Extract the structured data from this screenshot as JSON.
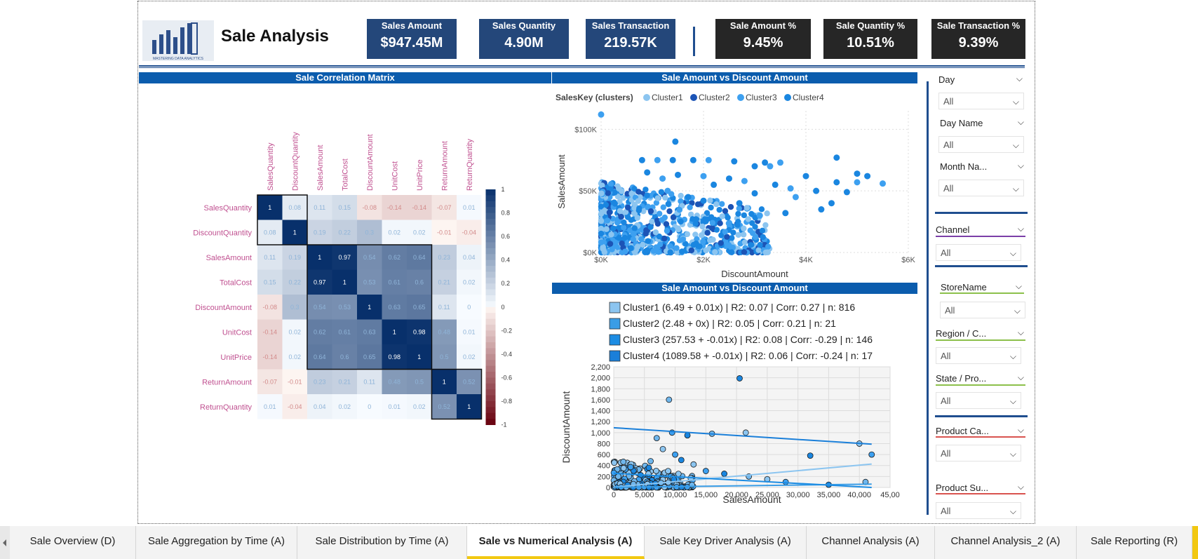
{
  "report": {
    "title": "Sale Analysis",
    "logo_text": "MASTERING DATA ANALYTICS"
  },
  "kpis": [
    {
      "label": "Sales Amount",
      "value": "$947.45M",
      "style": "blue"
    },
    {
      "label": "Sales Quantity",
      "value": "4.90M",
      "style": "blue"
    },
    {
      "label": "Sales Transaction",
      "value": "219.57K",
      "style": "blue"
    },
    {
      "label": "Sale Amount %",
      "value": "9.45%",
      "style": "dark"
    },
    {
      "label": "Sale Quantity %",
      "value": "10.51%",
      "style": "dark"
    },
    {
      "label": "Sale Transaction %",
      "value": "9.39%",
      "style": "dark"
    }
  ],
  "panels": {
    "corr_title": "Sale Correlation Matrix",
    "scatter_title": "Sale Amount vs Discount Amount",
    "regression_title": "Sale Amount vs Discount Amount"
  },
  "colors": {
    "header_blue": "#0b5cad",
    "kpi_blue": "#24477a",
    "kpi_dark": "#262626",
    "cluster1": "#8cc5f0",
    "cluster2": "#1c54b6",
    "cluster3": "#3da0f0",
    "cluster4": "#1a86e0",
    "active_tab": "#f2c811"
  },
  "slicers": [
    {
      "label": "Day",
      "value": "All"
    },
    {
      "label": "Day Name",
      "value": "All"
    },
    {
      "label": "Month Na...",
      "value": "All"
    },
    {
      "label": "Channel",
      "value": "All",
      "underline": "#7b3fa8"
    },
    {
      "label": "StoreName",
      "value": "All",
      "underline": "#8cc04b"
    },
    {
      "label": "Region / C...",
      "value": "All",
      "underline": "#8cc04b"
    },
    {
      "label": "State / Pro...",
      "value": "All",
      "underline": "#8cc04b"
    },
    {
      "label": "Product Ca...",
      "value": "All",
      "underline": "#d9534f"
    },
    {
      "label": "Product Su...",
      "value": "All",
      "underline": "#d9534f"
    }
  ],
  "tabs": [
    {
      "label": "Sale Overview (D)",
      "active": false
    },
    {
      "label": "Sale Aggregation by Time (A)",
      "active": false
    },
    {
      "label": "Sale Distribution by Time (A)",
      "active": false
    },
    {
      "label": "Sale vs Numerical Analysis (A)",
      "active": true
    },
    {
      "label": "Sale Key Driver Analysis (A)",
      "active": false
    },
    {
      "label": "Channel Analysis (A)",
      "active": false
    },
    {
      "label": "Channel Analysis_2 (A)",
      "active": false
    },
    {
      "label": "Sale Reporting (R)",
      "active": false
    }
  ],
  "chart_data": [
    {
      "type": "heatmap",
      "title": "Sale Correlation Matrix",
      "variables": [
        "SalesQuantity",
        "DiscountQuantity",
        "SalesAmount",
        "TotalCost",
        "DiscountAmount",
        "UnitCost",
        "UnitPrice",
        "ReturnAmount",
        "ReturnQuantity"
      ],
      "values": [
        [
          1,
          0.08,
          0.11,
          0.15,
          -0.08,
          -0.14,
          -0.14,
          -0.07,
          0.01
        ],
        [
          0.08,
          1,
          0.19,
          0.22,
          0.3,
          0.02,
          0.02,
          -0.01,
          -0.04
        ],
        [
          0.11,
          0.19,
          1,
          0.97,
          0.54,
          0.62,
          0.64,
          0.23,
          0.04
        ],
        [
          0.15,
          0.22,
          0.97,
          1,
          0.53,
          0.61,
          0.6,
          0.21,
          0.02
        ],
        [
          -0.08,
          0.3,
          0.54,
          0.53,
          1,
          0.63,
          0.65,
          0.11,
          0
        ],
        [
          -0.14,
          0.02,
          0.62,
          0.61,
          0.63,
          1,
          0.98,
          0.48,
          0.01
        ],
        [
          -0.14,
          0.02,
          0.64,
          0.6,
          0.65,
          0.98,
          1,
          0.5,
          0.02
        ],
        [
          -0.07,
          -0.01,
          0.23,
          0.21,
          0.11,
          0.48,
          0.5,
          1,
          0.52
        ],
        [
          0.01,
          -0.04,
          0.04,
          0.02,
          0,
          0.01,
          0.02,
          0.52,
          1
        ]
      ],
      "colorbar_ticks": [
        "1",
        "0.8",
        "0.6",
        "0.4",
        "0.2",
        "0",
        "-0.2",
        "-0.4",
        "-0.6",
        "-0.8",
        "-1"
      ],
      "colorbar_range": [
        -1,
        1
      ]
    },
    {
      "type": "scatter",
      "title": "Sale Amount vs Discount Amount",
      "legend_title": "SalesKey (clusters)",
      "legend_position": "top-left",
      "series": [
        {
          "name": "Cluster1",
          "color": "#8cc5f0"
        },
        {
          "name": "Cluster2",
          "color": "#1c54b6"
        },
        {
          "name": "Cluster3",
          "color": "#3da0f0"
        },
        {
          "name": "Cluster4",
          "color": "#1a86e0"
        }
      ],
      "xlabel": "DiscountAmount",
      "ylabel": "SalesAmount",
      "x_ticks": [
        "$0K",
        "$2K",
        "$4K",
        "$6K"
      ],
      "y_ticks": [
        "$0K",
        "$50K",
        "$100K"
      ],
      "xlim": [
        0,
        6000
      ],
      "ylim": [
        0,
        115000
      ],
      "grid": true,
      "outlier_points": [
        [
          0,
          112000
        ],
        [
          1450,
          90000
        ],
        [
          800,
          75000
        ],
        [
          1100,
          75000
        ],
        [
          1400,
          75000
        ],
        [
          1800,
          75000
        ],
        [
          2100,
          75000
        ],
        [
          2600,
          74000
        ],
        [
          3200,
          73000
        ],
        [
          3500,
          73000
        ],
        [
          4600,
          77000
        ],
        [
          3000,
          70000
        ],
        [
          3300,
          70000
        ],
        [
          5000,
          64000
        ],
        [
          5200,
          62000
        ],
        [
          5500,
          56000
        ],
        [
          4000,
          62000
        ],
        [
          4600,
          57000
        ],
        [
          5000,
          57000
        ],
        [
          4200,
          50000
        ],
        [
          4800,
          49000
        ],
        [
          3800,
          45000
        ],
        [
          4500,
          40000
        ],
        [
          4300,
          35000
        ],
        [
          2800,
          58000
        ],
        [
          3400,
          55000
        ],
        [
          2500,
          60000
        ],
        [
          2000,
          62000
        ],
        [
          1500,
          63000
        ],
        [
          900,
          65000
        ],
        [
          1200,
          60000
        ],
        [
          2200,
          55000
        ],
        [
          3000,
          48000
        ],
        [
          3700,
          52000
        ],
        [
          2700,
          40000
        ],
        [
          2000,
          42000
        ],
        [
          1300,
          50000
        ],
        [
          1700,
          45000
        ],
        [
          3600,
          32000
        ],
        [
          3100,
          30000
        ]
      ]
    },
    {
      "type": "scatter",
      "title": "Sale Amount vs Discount Amount",
      "legend_position": "top",
      "series": [
        {
          "name": "Cluster1 (6.49 + 0.01x) | R2: 0.07 | Corr: 0.27 | n: 816",
          "color": "#8cc5f0",
          "line": [
            [
              0,
              6.49
            ],
            [
              42000,
              426.49
            ]
          ]
        },
        {
          "name": "Cluster2 (2.48 + 0x) | R2: 0.05 | Corr: 0.21 | n: 21",
          "color": "#3a9de6",
          "line": [
            [
              0,
              2.48
            ],
            [
              42000,
              60
            ]
          ]
        },
        {
          "name": "Cluster3 (257.53 + -0.01x) | R2: 0.08 | Corr: -0.29 | n: 146",
          "color": "#1c8ce3",
          "line": [
            [
              0,
              257.53
            ],
            [
              42000,
              0
            ]
          ]
        },
        {
          "name": "Cluster4 (1089.58 + -0.01x) | R2: 0.06 | Corr: -0.24 | n: 17",
          "color": "#1a7fd9",
          "line": [
            [
              0,
              1089.58
            ],
            [
              42000,
              790
            ]
          ]
        }
      ],
      "xlabel": "SalesAmount",
      "ylabel": "DiscountAmount",
      "x_ticks": [
        "0",
        "5,000",
        "10,000",
        "15,000",
        "20,000",
        "25,000",
        "30,000",
        "35,000",
        "40,000",
        "45,00"
      ],
      "y_ticks": [
        "0",
        "200",
        "400",
        "600",
        "800",
        "1,000",
        "1,200",
        "1,400",
        "1,600",
        "1,800",
        "2,000",
        "2,200"
      ],
      "xlim": [
        0,
        45000
      ],
      "ylim": [
        0,
        2200
      ],
      "grid": true,
      "outlier_points": [
        [
          20500,
          1990
        ],
        [
          9000,
          1600
        ],
        [
          21500,
          1000
        ],
        [
          9500,
          1000
        ],
        [
          12000,
          950
        ],
        [
          16000,
          980
        ],
        [
          40000,
          800
        ],
        [
          42000,
          600
        ],
        [
          32000,
          580
        ],
        [
          7000,
          900
        ],
        [
          8000,
          700
        ],
        [
          10000,
          600
        ],
        [
          11000,
          500
        ],
        [
          6000,
          480
        ],
        [
          13000,
          420
        ],
        [
          15000,
          300
        ],
        [
          18000,
          250
        ],
        [
          22000,
          200
        ],
        [
          25000,
          150
        ],
        [
          28000,
          100
        ],
        [
          35000,
          50
        ],
        [
          41000,
          100
        ]
      ]
    }
  ]
}
